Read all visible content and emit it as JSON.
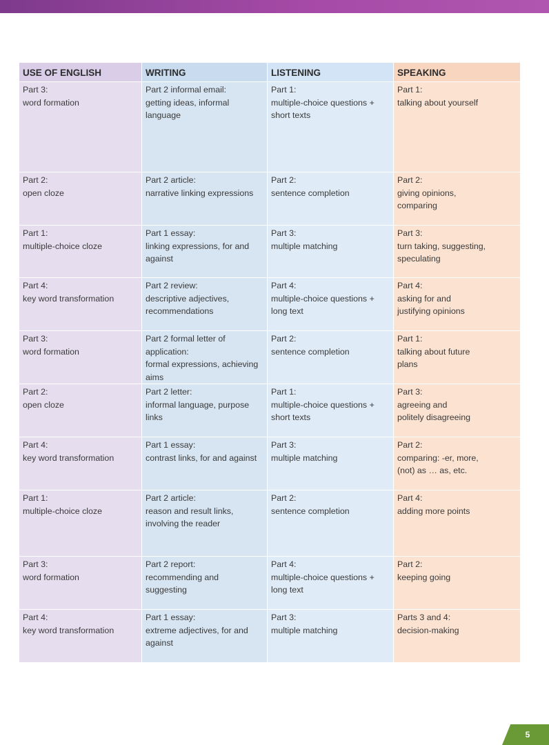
{
  "headers": [
    "USE OF ENGLISH",
    "WRITING",
    "LISTENING",
    "SPEAKING"
  ],
  "rows": [
    {
      "use_of_english": [
        "Part 3:",
        "word formation"
      ],
      "writing": [
        "Part 2 informal email:",
        "getting ideas, informal",
        "language"
      ],
      "listening": [
        "Part 1:",
        "multiple-choice questions +",
        "short texts"
      ],
      "speaking": [
        "Part 1:",
        "talking about yourself"
      ]
    },
    {
      "use_of_english": [
        "Part 2:",
        "open cloze"
      ],
      "writing": [
        "Part 2 article:",
        "narrative linking expressions"
      ],
      "listening": [
        "Part 2:",
        "sentence completion"
      ],
      "speaking": [
        "Part 2:",
        "giving opinions,",
        "comparing"
      ]
    },
    {
      "use_of_english": [
        "Part 1:",
        "multiple-choice cloze"
      ],
      "writing": [
        "Part 1 essay:",
        "linking expressions, for and",
        "against"
      ],
      "listening": [
        "Part 3:",
        "multiple matching"
      ],
      "speaking": [
        "Part 3:",
        "turn taking, suggesting,",
        "speculating"
      ]
    },
    {
      "use_of_english": [
        "Part 4:",
        "key word transformation"
      ],
      "writing": [
        "Part 2 review:",
        "descriptive adjectives,",
        "recommendations"
      ],
      "listening": [
        "Part 4:",
        "multiple-choice questions +",
        "long text"
      ],
      "speaking": [
        "Part 4:",
        "asking for and",
        "justifying opinions"
      ]
    },
    {
      "use_of_english": [
        "Part 3:",
        "word formation"
      ],
      "writing": [
        "Part 2 formal letter of",
        "application:",
        "formal expressions, achieving",
        "aims"
      ],
      "listening": [
        "Part 2:",
        "sentence completion"
      ],
      "speaking": [
        "Part 1:",
        "talking about future",
        "plans"
      ]
    },
    {
      "use_of_english": [
        "Part 2:",
        "open cloze"
      ],
      "writing": [
        "Part 2 letter:",
        "informal language, purpose",
        "links"
      ],
      "listening": [
        "Part 1:",
        "multiple-choice questions +",
        "short texts"
      ],
      "speaking": [
        "Part 3:",
        "agreeing and",
        "politely disagreeing"
      ]
    },
    {
      "use_of_english": [
        "Part 4:",
        "key word transformation"
      ],
      "writing": [
        "Part 1 essay:",
        "contrast links, for and against"
      ],
      "listening": [
        "Part 3:",
        "multiple matching"
      ],
      "speaking": [
        "Part 2:",
        "comparing: -er, more,",
        "(not) as … as, etc."
      ]
    },
    {
      "use_of_english": [
        "Part 1:",
        "multiple-choice cloze"
      ],
      "writing": [
        "Part 2 article:",
        "reason and result links,",
        "involving the reader"
      ],
      "listening": [
        "Part 2:",
        "sentence completion"
      ],
      "speaking": [
        "Part 4:",
        "adding more points"
      ]
    },
    {
      "use_of_english": [
        "Part 3:",
        "word formation"
      ],
      "writing": [
        "Part 2 report:",
        "recommending and",
        "suggesting"
      ],
      "listening": [
        "Part 4:",
        "multiple-choice questions +",
        "long text"
      ],
      "speaking": [
        "Part 2:",
        "keeping going"
      ]
    },
    {
      "use_of_english": [
        "Part 4:",
        "key word transformation"
      ],
      "writing": [
        "Part 1 essay:",
        "extreme adjectives, for and",
        "against"
      ],
      "listening": [
        "Part 3:",
        "multiple matching"
      ],
      "speaking": [
        "Parts 3 and 4:",
        "decision-making"
      ]
    }
  ],
  "page_number": "5",
  "colors": {
    "header_bar": "#a54aa6",
    "col_use_of_english": "#e6deef",
    "col_writing": "#d7e4f1",
    "col_listening": "#dfebf7",
    "col_speaking": "#fbe2d1",
    "page_tab": "#6a9a36"
  }
}
